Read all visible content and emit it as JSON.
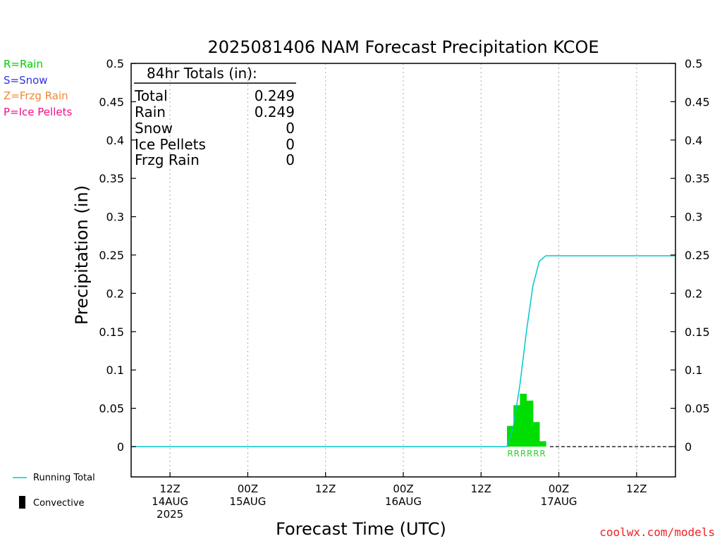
{
  "title": "2025081406 NAM Forecast Precipitation KCOE",
  "legend": [
    {
      "label": "R=Rain",
      "color": "#00cc00"
    },
    {
      "label": "S=Snow",
      "color": "#3333dd"
    },
    {
      "label": "Z=Frzg Rain",
      "color": "#ee8833"
    },
    {
      "label": "P=Ice Pellets",
      "color": "#ee1188"
    }
  ],
  "totals": {
    "heading": "84hr Totals (in):",
    "rows": [
      {
        "label": "Total",
        "value": "0.249"
      },
      {
        "label": "Rain",
        "value": "0.249"
      },
      {
        "label": "Snow",
        "value": "0"
      },
      {
        "label": "Ice Pellets",
        "value": "0"
      },
      {
        "label": "Frzg Rain",
        "value": "0"
      }
    ]
  },
  "bottom_legend": {
    "running_total": "Running Total",
    "convective": "Convective",
    "running_total_color": "#00c8c8"
  },
  "watermark": "coolwx.com/models",
  "colors": {
    "rain": "#00dd00",
    "rain_text": "#33cc33",
    "watermark": "#ee2222"
  },
  "chart_data": {
    "type": "bar",
    "title": "2025081406 NAM Forecast Precipitation KCOE",
    "xlabel": "Forecast Time (UTC)",
    "ylabel": "Precipitation (in)",
    "ylim": [
      0,
      0.5
    ],
    "xlim": [
      6,
      90
    ],
    "y_ticks": [
      "0",
      "0.05",
      "0.1",
      "0.15",
      "0.2",
      "0.25",
      "0.3",
      "0.35",
      "0.4",
      "0.45",
      "0.5"
    ],
    "x_ticks": [
      {
        "hour": 12,
        "lines": [
          "12Z",
          "14AUG",
          "2025"
        ]
      },
      {
        "hour": 24,
        "lines": [
          "00Z",
          "15AUG"
        ]
      },
      {
        "hour": 36,
        "lines": [
          "12Z"
        ]
      },
      {
        "hour": 48,
        "lines": [
          "00Z",
          "16AUG"
        ]
      },
      {
        "hour": 60,
        "lines": [
          "12Z"
        ]
      },
      {
        "hour": 72,
        "lines": [
          "00Z",
          "17AUG"
        ]
      },
      {
        "hour": 84,
        "lines": [
          "12Z"
        ]
      }
    ],
    "grid": true,
    "precip_series": {
      "name": "Rain",
      "type_letter": "R",
      "hour_start": [
        64,
        65,
        66,
        67,
        68,
        69
      ],
      "values": [
        0.027,
        0.054,
        0.069,
        0.06,
        0.032,
        0.007
      ]
    },
    "running_total_series": {
      "name": "Running Total",
      "hours": [
        6,
        64,
        65,
        66,
        67,
        68,
        69,
        70,
        90
      ],
      "values": [
        0,
        0,
        0.027,
        0.081,
        0.15,
        0.21,
        0.242,
        0.249,
        0.249
      ]
    }
  }
}
